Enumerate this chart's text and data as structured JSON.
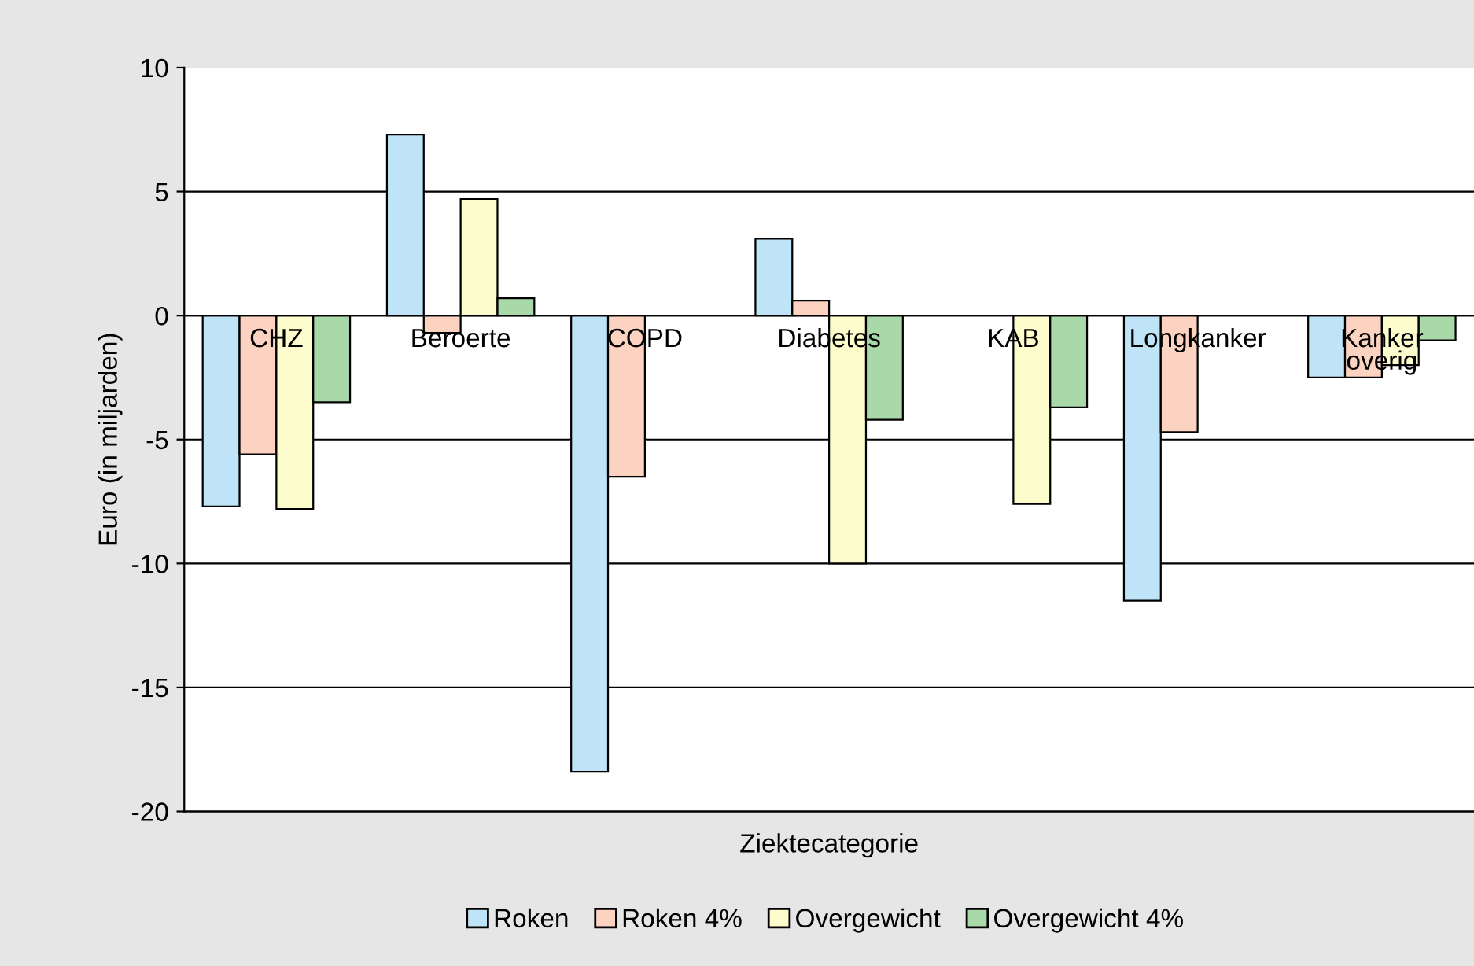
{
  "chart_data": {
    "type": "bar",
    "xlabel": "Ziektecategorie",
    "ylabel": "Euro (in miljarden)",
    "categories": [
      "CHZ",
      "Beroerte",
      "COPD",
      "Diabetes",
      "KAB",
      "Longkanker",
      "Kanker\noverig"
    ],
    "series": [
      {
        "name": "Roken",
        "color": "#bfe3f7",
        "values": [
          -7.7,
          7.3,
          -18.4,
          3.1,
          null,
          -11.5,
          -2.5
        ]
      },
      {
        "name": "Roken 4%",
        "color": "#fcd3c1",
        "values": [
          -5.6,
          -0.7,
          -6.5,
          0.6,
          null,
          -4.7,
          -2.5
        ]
      },
      {
        "name": "Overgewicht",
        "color": "#fdfccc",
        "values": [
          -7.8,
          4.7,
          null,
          -10,
          -7.6,
          null,
          -2.0
        ]
      },
      {
        "name": "Overgewicht 4%",
        "color": "#a9d9a9",
        "values": [
          -3.5,
          0.7,
          null,
          -4.2,
          -3.7,
          null,
          -1.0
        ]
      }
    ],
    "ylim": [
      -20,
      10
    ],
    "yticks": [
      -20,
      -15,
      -10,
      -5,
      0,
      5,
      10
    ],
    "grid": "y",
    "legend": "bottom"
  }
}
